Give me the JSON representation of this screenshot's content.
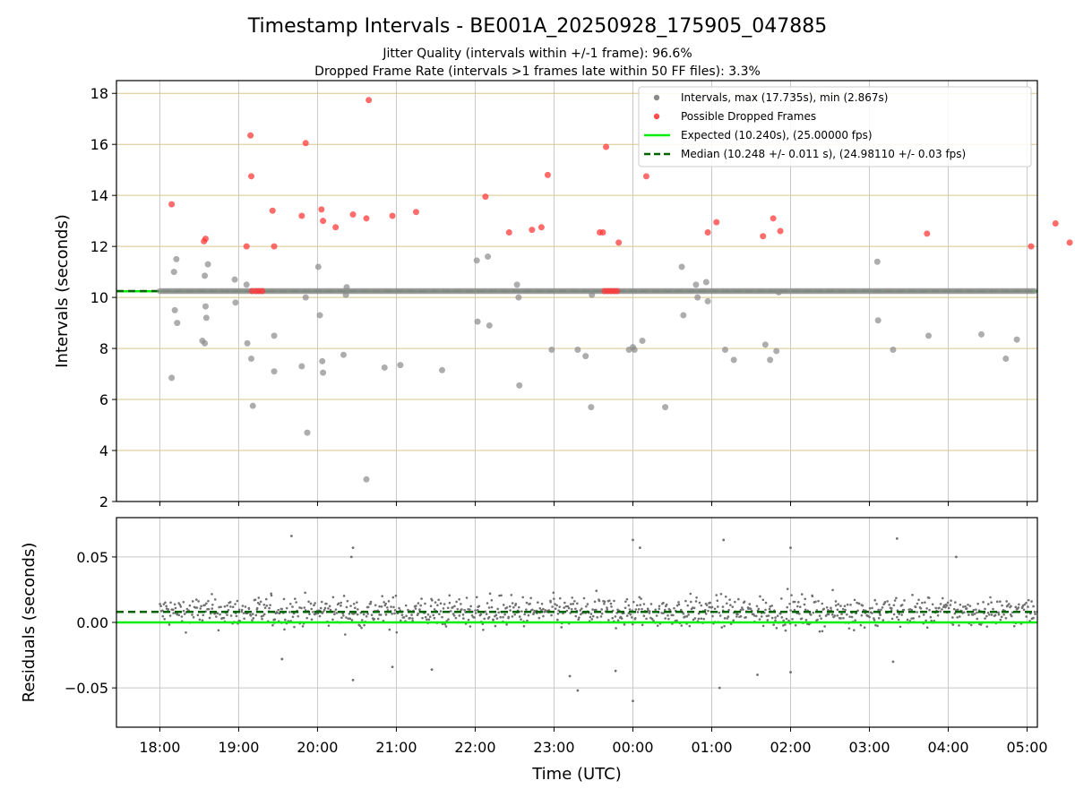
{
  "chart_data": {
    "type": "scatter",
    "title": "Timestamp Intervals - BE001A_20250928_175905_047885",
    "subtitle_lines": [
      "Jitter Quality (intervals within +/-1 frame): 96.6%",
      "Dropped Frame Rate (intervals >1 frames late within 50 FF files): 3.3%"
    ],
    "xlabel": "Time (UTC)",
    "x_ticks": [
      {
        "hour": 0,
        "label": "18:00"
      },
      {
        "hour": 1,
        "label": "19:00"
      },
      {
        "hour": 2,
        "label": "20:00"
      },
      {
        "hour": 3,
        "label": "21:00"
      },
      {
        "hour": 4,
        "label": "22:00"
      },
      {
        "hour": 5,
        "label": "23:00"
      },
      {
        "hour": 6,
        "label": "00:00"
      },
      {
        "hour": 7,
        "label": "01:00"
      },
      {
        "hour": 8,
        "label": "02:00"
      },
      {
        "hour": 9,
        "label": "03:00"
      },
      {
        "hour": 10,
        "label": "04:00"
      },
      {
        "hour": 11,
        "label": "05:00"
      }
    ],
    "x_unit_note": "x values are hours elapsed since 18:00 UTC",
    "xlim": [
      -0.55,
      11.13
    ],
    "top_panel": {
      "ylabel": "Intervals (seconds)",
      "ylim": [
        2,
        18.5
      ],
      "y_ticks": [
        "2",
        "4",
        "6",
        "8",
        "10",
        "12",
        "14",
        "16",
        "18"
      ],
      "y_tick_values": [
        2,
        4,
        6,
        8,
        10,
        12,
        14,
        16,
        18
      ],
      "expected": 10.24,
      "median": 10.248,
      "series": [
        {
          "name": "Intervals, max (17.735s), min (2.867s)",
          "color": "#808080",
          "baseline_range": [
            0.0,
            11.13
          ],
          "baseline_value": 10.25,
          "points": [
            [
              0.15,
              6.85
            ],
            [
              0.18,
              11.0
            ],
            [
              0.19,
              9.5
            ],
            [
              0.21,
              11.5
            ],
            [
              0.22,
              9.0
            ],
            [
              0.54,
              8.3
            ],
            [
              0.57,
              8.2
            ],
            [
              0.57,
              10.85
            ],
            [
              0.58,
              9.65
            ],
            [
              0.59,
              9.2
            ],
            [
              0.61,
              11.3
            ],
            [
              0.95,
              10.7
            ],
            [
              0.96,
              9.8
            ],
            [
              1.1,
              10.5
            ],
            [
              1.11,
              8.2
            ],
            [
              1.16,
              7.6
            ],
            [
              1.18,
              5.75
            ],
            [
              1.45,
              8.5
            ],
            [
              1.45,
              7.1
            ],
            [
              1.8,
              7.3
            ],
            [
              1.85,
              10.0
            ],
            [
              1.87,
              4.7
            ],
            [
              2.01,
              11.2
            ],
            [
              2.03,
              9.3
            ],
            [
              2.06,
              7.5
            ],
            [
              2.07,
              7.05
            ],
            [
              2.33,
              7.75
            ],
            [
              2.36,
              10.1
            ],
            [
              2.37,
              10.4
            ],
            [
              2.85,
              7.25
            ],
            [
              3.05,
              7.35
            ],
            [
              3.58,
              7.15
            ],
            [
              4.02,
              11.45
            ],
            [
              4.03,
              9.05
            ],
            [
              4.16,
              11.6
            ],
            [
              4.18,
              8.9
            ],
            [
              4.53,
              10.5
            ],
            [
              4.55,
              10.0
            ],
            [
              4.56,
              6.55
            ],
            [
              4.97,
              7.95
            ],
            [
              5.3,
              7.95
            ],
            [
              5.4,
              7.7
            ],
            [
              5.47,
              5.7
            ],
            [
              5.48,
              10.1
            ],
            [
              5.95,
              7.95
            ],
            [
              6.0,
              8.05
            ],
            [
              6.02,
              7.95
            ],
            [
              6.12,
              8.3
            ],
            [
              6.41,
              5.7
            ],
            [
              6.62,
              11.2
            ],
            [
              6.64,
              9.3
            ],
            [
              6.8,
              10.5
            ],
            [
              6.82,
              10.0
            ],
            [
              6.93,
              10.6
            ],
            [
              6.95,
              9.85
            ],
            [
              7.17,
              7.95
            ],
            [
              7.28,
              7.55
            ],
            [
              7.68,
              8.15
            ],
            [
              7.74,
              7.55
            ],
            [
              7.82,
              7.9
            ],
            [
              7.85,
              10.2
            ],
            [
              9.1,
              11.4
            ],
            [
              9.11,
              9.1
            ],
            [
              9.3,
              7.95
            ],
            [
              9.75,
              8.5
            ],
            [
              10.42,
              8.55
            ],
            [
              10.73,
              7.6
            ],
            [
              10.87,
              8.35
            ],
            [
              2.62,
              2.867
            ]
          ]
        },
        {
          "name": "Possible Dropped Frames",
          "color": "#ff3b3b",
          "points": [
            [
              0.15,
              13.65
            ],
            [
              0.56,
              12.2
            ],
            [
              0.58,
              12.3
            ],
            [
              1.1,
              12.0
            ],
            [
              1.15,
              16.35
            ],
            [
              1.16,
              14.75
            ],
            [
              1.43,
              13.4
            ],
            [
              1.45,
              12.0
            ],
            [
              1.8,
              13.2
            ],
            [
              1.85,
              16.05
            ],
            [
              2.05,
              13.45
            ],
            [
              2.07,
              13.0
            ],
            [
              2.23,
              12.75
            ],
            [
              2.45,
              13.25
            ],
            [
              2.62,
              13.1
            ],
            [
              2.65,
              17.735
            ],
            [
              2.95,
              13.2
            ],
            [
              3.25,
              13.35
            ],
            [
              4.13,
              13.95
            ],
            [
              4.43,
              12.55
            ],
            [
              4.72,
              12.65
            ],
            [
              4.84,
              12.75
            ],
            [
              4.92,
              14.8
            ],
            [
              5.58,
              12.55
            ],
            [
              5.62,
              12.55
            ],
            [
              5.66,
              15.9
            ],
            [
              5.82,
              12.15
            ],
            [
              6.17,
              14.75
            ],
            [
              6.95,
              12.55
            ],
            [
              7.06,
              12.95
            ],
            [
              7.65,
              12.4
            ],
            [
              7.78,
              13.1
            ],
            [
              7.87,
              12.6
            ],
            [
              9.73,
              12.5
            ],
            [
              11.05,
              12.0
            ],
            [
              11.36,
              12.9
            ],
            [
              11.54,
              12.15
            ],
            [
              1.17,
              10.25
            ],
            [
              1.22,
              10.25
            ],
            [
              1.26,
              10.25
            ],
            [
              1.3,
              10.25
            ],
            [
              5.64,
              10.25
            ],
            [
              5.68,
              10.25
            ],
            [
              5.72,
              10.25
            ],
            [
              5.76,
              10.25
            ],
            [
              5.8,
              10.25
            ]
          ]
        }
      ],
      "legend": {
        "placement": "top-right",
        "entries": [
          {
            "label": "Intervals, max (17.735s), min (2.867s)",
            "kind": "dot",
            "color": "#8a8a8a"
          },
          {
            "label": "Possible Dropped Frames",
            "kind": "dot",
            "color": "#ff4d4d"
          },
          {
            "label": "Expected (10.240s), (25.00000 fps)",
            "kind": "line",
            "color": "#00ee00"
          },
          {
            "label": "Median (10.248 +/- 0.011 s), (24.98110 +/- 0.03 fps)",
            "kind": "dashed",
            "color": "#006400"
          }
        ]
      }
    },
    "bottom_panel": {
      "ylabel": "Residuals (seconds)",
      "ylim": [
        -0.08,
        0.08
      ],
      "y_ticks": [
        "−0.05",
        "0.00",
        "0.05"
      ],
      "y_tick_values": [
        -0.05,
        0.0,
        0.05
      ],
      "expected_residual": 0.0,
      "median_residual": 0.008,
      "scatter_center": 0.008,
      "scatter_spread": 0.011,
      "scatter_range": [
        0.0,
        11.13
      ],
      "outliers": [
        [
          1.67,
          0.066
        ],
        [
          2.43,
          0.05
        ],
        [
          2.45,
          0.057
        ],
        [
          2.45,
          -0.044
        ],
        [
          6.0,
          0.063
        ],
        [
          6.09,
          0.057
        ],
        [
          5.3,
          -0.052
        ],
        [
          6.0,
          -0.06
        ],
        [
          7.15,
          0.063
        ],
        [
          7.1,
          -0.05
        ],
        [
          8.0,
          0.057
        ],
        [
          9.35,
          0.064
        ],
        [
          5.2,
          -0.041
        ],
        [
          5.78,
          -0.037
        ],
        [
          7.58,
          -0.04
        ],
        [
          8.0,
          -0.038
        ],
        [
          9.3,
          -0.03
        ],
        [
          10.1,
          0.05
        ],
        [
          1.55,
          -0.028
        ],
        [
          2.95,
          -0.034
        ],
        [
          3.45,
          -0.036
        ]
      ],
      "color": "#707070"
    }
  }
}
